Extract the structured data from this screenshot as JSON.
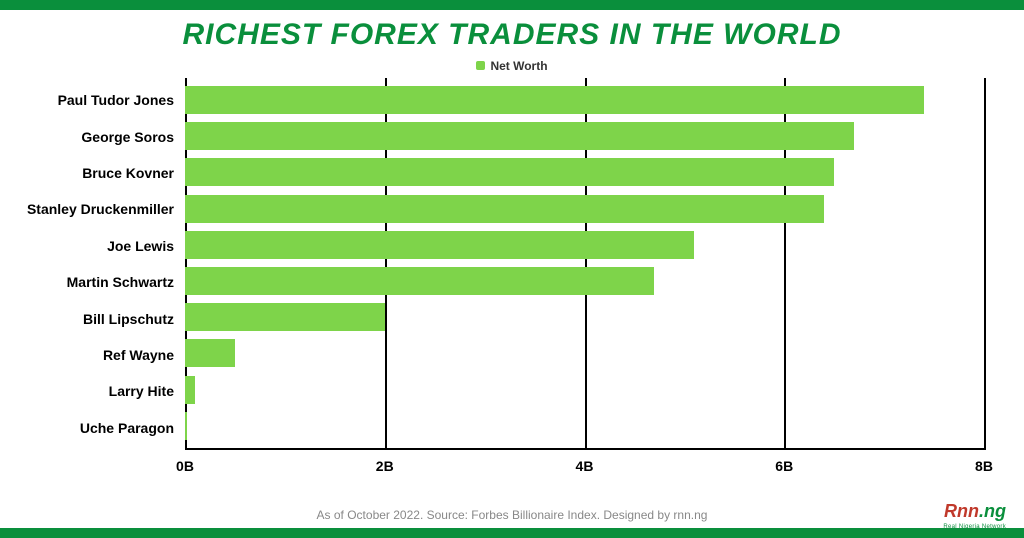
{
  "meta": {
    "stripe_color": "#0a8f3c",
    "background_color": "#ffffff"
  },
  "title": {
    "text": "RICHEST FOREX TRADERS IN THE WORLD",
    "color": "#0a8f3c",
    "fontsize": 30
  },
  "legend": {
    "swatch_color": "#7ed44a",
    "label": "Net Worth",
    "label_color": "#333333"
  },
  "chart": {
    "type": "bar-horizontal",
    "x_axis": {
      "min": 0,
      "max": 8,
      "tick_step": 2,
      "ticks": [
        {
          "value": 0,
          "label": "0B"
        },
        {
          "value": 2,
          "label": "2B"
        },
        {
          "value": 4,
          "label": "4B"
        },
        {
          "value": 6,
          "label": "6B"
        },
        {
          "value": 8,
          "label": "8B"
        }
      ],
      "grid_color": "#000000",
      "label_color": "#000000",
      "label_fontsize": 14
    },
    "y_label_color": "#000000",
    "y_label_fontsize": 14,
    "bar_color": "#7ed44a",
    "data": [
      {
        "name": "Paul Tudor Jones",
        "value": 7.4
      },
      {
        "name": "George Soros",
        "value": 6.7
      },
      {
        "name": "Bruce Kovner",
        "value": 6.5
      },
      {
        "name": "Stanley Druckenmiller",
        "value": 6.4
      },
      {
        "name": "Joe Lewis",
        "value": 5.1
      },
      {
        "name": "Martin Schwartz",
        "value": 4.7
      },
      {
        "name": "Bill Lipschutz",
        "value": 2.0
      },
      {
        "name": "Ref Wayne",
        "value": 0.5
      },
      {
        "name": "Larry Hite",
        "value": 0.1
      },
      {
        "name": "Uche Paragon",
        "value": 0.02
      }
    ]
  },
  "caption": {
    "text_prefix": "As of October 2022. Source: Forbes Billionaire Index. Designed by ",
    "link_text": "rnn.ng",
    "color": "#888888"
  },
  "logo": {
    "part1": "Rnn",
    "part2": ".ng",
    "sub": "Real Nigeria Network"
  }
}
